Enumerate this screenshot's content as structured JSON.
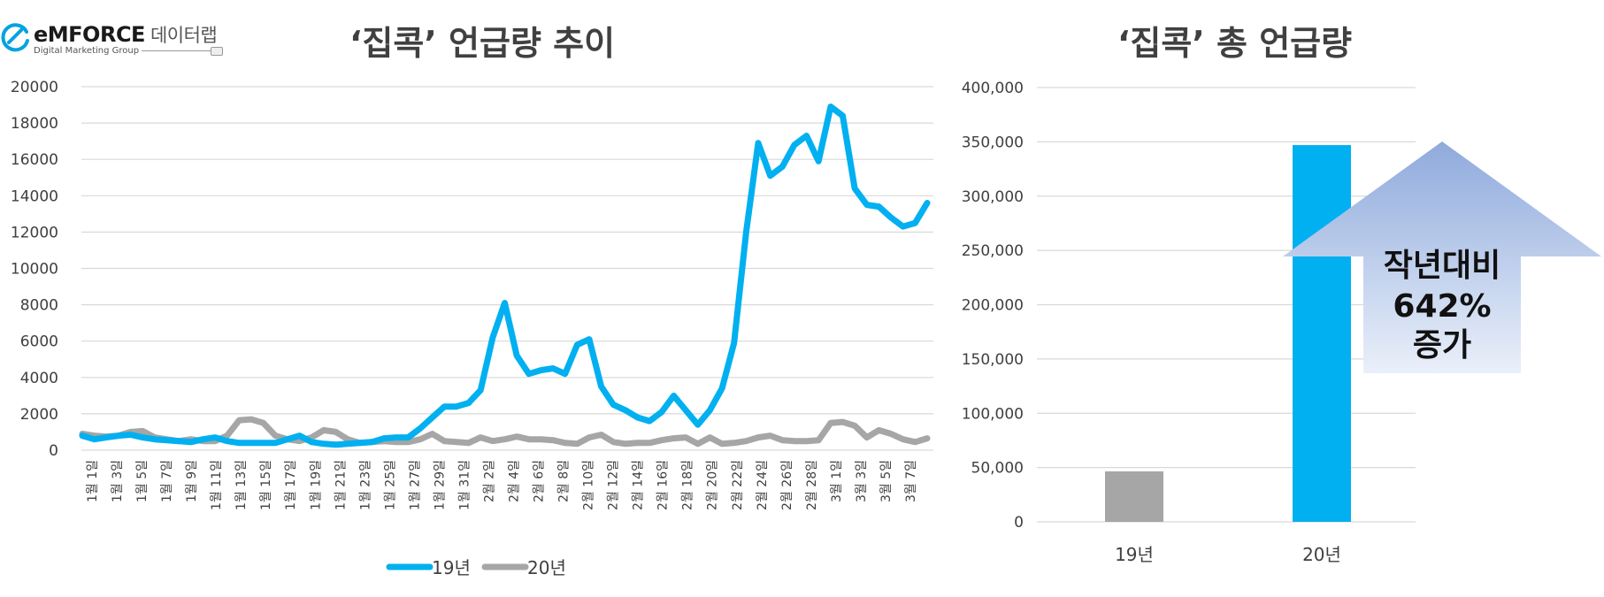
{
  "logo": {
    "brand": "eMFORCE",
    "brand_ko": "데이터랩",
    "subtitle": "Digital Marketing Group"
  },
  "colors": {
    "series19": "#00b0f0",
    "series20": "#a6a6a6",
    "grid": "#d9d9d9",
    "arrow_top": "#8faadc",
    "arrow_bottom": "#eaf0fa"
  },
  "chart_data": [
    {
      "type": "line",
      "title": "‘집콕’ 언급량 추이",
      "ylim": [
        0,
        20000
      ],
      "yticks": [
        0,
        2000,
        4000,
        6000,
        8000,
        10000,
        12000,
        14000,
        16000,
        18000,
        20000
      ],
      "x_tick_labels": [
        "1월 1일",
        "1월 3일",
        "1월 5일",
        "1월 7일",
        "1월 9일",
        "1월 11일",
        "1월 13일",
        "1월 15일",
        "1월 17일",
        "1월 19일",
        "1월 21일",
        "1월 23일",
        "1월 25일",
        "1월 27일",
        "1월 29일",
        "1월 31일",
        "2월 2일",
        "2월 4일",
        "2월 6일",
        "2월 8일",
        "2월 10일",
        "2월 12일",
        "2월 14일",
        "2월 16일",
        "2월 18일",
        "2월 20일",
        "2월 22일",
        "2월 24일",
        "2월 26일",
        "2월 28일",
        "3월 1일",
        "3월 3일",
        "3월 5일",
        "3월 7일"
      ],
      "series": [
        {
          "name": "19년",
          "color": "#00b0f0",
          "values": [
            800,
            600,
            700,
            800,
            850,
            700,
            600,
            550,
            500,
            450,
            600,
            700,
            500,
            400,
            400,
            400,
            400,
            600,
            800,
            450,
            350,
            300,
            350,
            400,
            450,
            650,
            700,
            700,
            1200,
            1800,
            2400,
            2400,
            2600,
            3300,
            6200,
            8100,
            5200,
            4200,
            4400,
            4500,
            4200,
            5800,
            6100,
            3500,
            2500,
            2200,
            1800,
            1600,
            2100,
            3000,
            2200,
            1400,
            2200,
            3400,
            5900,
            12000,
            16900,
            15100,
            15600,
            16800,
            17300,
            15900,
            18900,
            18400,
            14400,
            13500,
            13400,
            12800,
            12300,
            12500,
            13600
          ]
        },
        {
          "name": "20년",
          "color": "#a6a6a6",
          "values": [
            900,
            800,
            750,
            800,
            1000,
            1050,
            700,
            600,
            500,
            600,
            500,
            500,
            800,
            1650,
            1700,
            1500,
            800,
            600,
            500,
            700,
            1100,
            1000,
            600,
            400,
            450,
            500,
            450,
            450,
            600,
            900,
            500,
            450,
            400,
            700,
            500,
            600,
            750,
            600,
            600,
            550,
            400,
            350,
            700,
            850,
            450,
            350,
            400,
            400,
            550,
            650,
            700,
            350,
            700,
            350,
            400,
            500,
            700,
            800,
            550,
            500,
            500,
            550,
            1500,
            1550,
            1350,
            700,
            1100,
            900,
            600,
            450,
            650
          ]
        }
      ]
    },
    {
      "type": "bar",
      "title": "‘집콕’ 총 언급량",
      "categories": [
        "19년",
        "20년"
      ],
      "values": [
        46500,
        347000
      ],
      "bar_colors": [
        "#a6a6a6",
        "#00b0f0"
      ],
      "ylim": [
        0,
        400000
      ],
      "yticks": [
        0,
        50000,
        100000,
        150000,
        200000,
        250000,
        300000,
        350000,
        400000
      ],
      "ytick_labels": [
        "0",
        "50,000",
        "100,000",
        "150,000",
        "200,000",
        "250,000",
        "300,000",
        "350,000",
        "400,000"
      ],
      "annotation": {
        "lines": [
          "작년대비",
          "642%",
          "증가"
        ]
      }
    }
  ]
}
